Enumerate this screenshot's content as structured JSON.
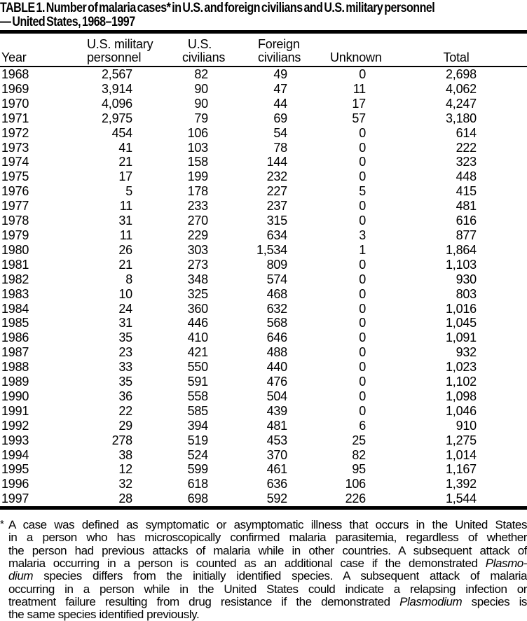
{
  "title": {
    "line1": "TABLE 1. Number of malaria cases* in U.S. and foreign civilians and U.S. military personnel",
    "line2": "— United States, 1968–1997"
  },
  "table": {
    "columns": [
      {
        "key": "year",
        "l1": "",
        "l2": "Year"
      },
      {
        "key": "us-military-personnel",
        "l1": "U.S. military",
        "l2": "personnel"
      },
      {
        "key": "us-civilians",
        "l1": "U.S.",
        "l2": "civilians"
      },
      {
        "key": "foreign-civilians",
        "l1": "Foreign",
        "l2": "civilians"
      },
      {
        "key": "unknown",
        "l1": "",
        "l2": "Unknown"
      },
      {
        "key": "total",
        "l1": "",
        "l2": "Total"
      }
    ],
    "rows": [
      [
        "1968",
        "2,567",
        "82",
        "49",
        "0",
        "2,698"
      ],
      [
        "1969",
        "3,914",
        "90",
        "47",
        "11",
        "4,062"
      ],
      [
        "1970",
        "4,096",
        "90",
        "44",
        "17",
        "4,247"
      ],
      [
        "1971",
        "2,975",
        "79",
        "69",
        "57",
        "3,180"
      ],
      [
        "1972",
        "454",
        "106",
        "54",
        "0",
        "614"
      ],
      [
        "1973",
        "41",
        "103",
        "78",
        "0",
        "222"
      ],
      [
        "1974",
        "21",
        "158",
        "144",
        "0",
        "323"
      ],
      [
        "1975",
        "17",
        "199",
        "232",
        "0",
        "448"
      ],
      [
        "1976",
        "5",
        "178",
        "227",
        "5",
        "415"
      ],
      [
        "1977",
        "11",
        "233",
        "237",
        "0",
        "481"
      ],
      [
        "1978",
        "31",
        "270",
        "315",
        "0",
        "616"
      ],
      [
        "1979",
        "11",
        "229",
        "634",
        "3",
        "877"
      ],
      [
        "1980",
        "26",
        "303",
        "1,534",
        "1",
        "1,864"
      ],
      [
        "1981",
        "21",
        "273",
        "809",
        "0",
        "1,103"
      ],
      [
        "1982",
        "8",
        "348",
        "574",
        "0",
        "930"
      ],
      [
        "1983",
        "10",
        "325",
        "468",
        "0",
        "803"
      ],
      [
        "1984",
        "24",
        "360",
        "632",
        "0",
        "1,016"
      ],
      [
        "1985",
        "31",
        "446",
        "568",
        "0",
        "1,045"
      ],
      [
        "1986",
        "35",
        "410",
        "646",
        "0",
        "1,091"
      ],
      [
        "1987",
        "23",
        "421",
        "488",
        "0",
        "932"
      ],
      [
        "1988",
        "33",
        "550",
        "440",
        "0",
        "1,023"
      ],
      [
        "1989",
        "35",
        "591",
        "476",
        "0",
        "1,102"
      ],
      [
        "1990",
        "36",
        "558",
        "504",
        "0",
        "1,098"
      ],
      [
        "1991",
        "22",
        "585",
        "439",
        "0",
        "1,046"
      ],
      [
        "1992",
        "29",
        "394",
        "481",
        "6",
        "910"
      ],
      [
        "1993",
        "278",
        "519",
        "453",
        "25",
        "1,275"
      ],
      [
        "1994",
        "38",
        "524",
        "370",
        "82",
        "1,014"
      ],
      [
        "1995",
        "12",
        "599",
        "461",
        "95",
        "1,167"
      ],
      [
        "1996",
        "32",
        "618",
        "636",
        "106",
        "1,392"
      ],
      [
        "1997",
        "28",
        "698",
        "592",
        "226",
        "1,544"
      ]
    ]
  },
  "footnote": {
    "marker": "*",
    "lines": [
      [
        {
          "t": "A case was defined as symptomatic or asymptomatic illness that occurs in the United States"
        }
      ],
      [
        {
          "t": "in a person who has microscopically confirmed malaria parasitemia, regardless of whether"
        }
      ],
      [
        {
          "t": "the person had previous attacks of malaria while in other countries. A subsequent attack of"
        }
      ],
      [
        {
          "t": "malaria occurring in a person is counted as an additional case if the demonstrated "
        },
        {
          "t": "Plasmo-",
          "i": true
        }
      ],
      [
        {
          "t": "dium",
          "i": true
        },
        {
          "t": " species differs from the initially identified species. A subsequent attack of malaria"
        }
      ],
      [
        {
          "t": "occurring in a person while in the United States could indicate a relapsing infection or"
        }
      ],
      [
        {
          "t": "treatment failure resulting from drug resistance if the demonstrated "
        },
        {
          "t": "Plasmodium",
          "i": true
        },
        {
          "t": " species is"
        }
      ],
      [
        {
          "t": "the same species identified previously."
        }
      ]
    ]
  }
}
